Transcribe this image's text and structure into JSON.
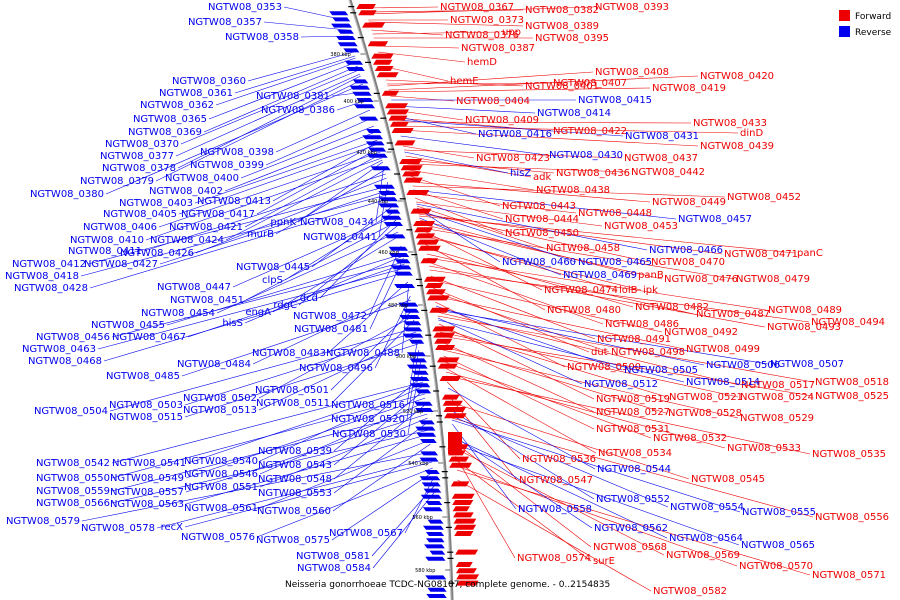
{
  "caption": "Neisseria gonorrhoeae TCDC-NG08107, complete genome. - 0..2154835",
  "legend": [
    {
      "label": "Forward",
      "color": "#ee0000"
    },
    {
      "label": "Reverse",
      "color": "#0000ee"
    }
  ],
  "colors": {
    "forward": "#ee0000",
    "reverse": "#0000ee",
    "backbone": "#808080"
  },
  "scale_ticks": [
    "380 kbp",
    "400 kbp",
    "420 kbp",
    "440 kbp",
    "460 kbp",
    "480 kbp",
    "500 kbp",
    "520 kbp",
    "540 kbp",
    "560 kbp",
    "580 kbp"
  ],
  "forward_labels": [
    "NGTW08_0367",
    "NGTW08_0382",
    "NGTW08_0393",
    "NGTW08_0373",
    "NGTW08_0389",
    "NGTW08_0376",
    "upp",
    "NGTW08_0395",
    "NGTW08_0387",
    "hemD",
    "hemE",
    "NGTW08_0401",
    "NGTW08_0407",
    "NGTW08_0408",
    "NGTW08_0420",
    "NGTW08_0419",
    "NGTW08_0404",
    "NGTW08_0409",
    "NGTW08_0422",
    "NGTW08_0433",
    "dinD",
    "NGTW08_0439",
    "NGTW08_0423",
    "NGTW08_0437",
    "adk",
    "NGTW08_0436",
    "NGTW08_0442",
    "NGTW08_0438",
    "NGTW08_0443",
    "NGTW08_0449",
    "NGTW08_0452",
    "NGTW08_0444",
    "NGTW08_0448",
    "NGTW08_0450",
    "NGTW08_0453",
    "NGTW08_0458",
    "NGTW08_0470",
    "NGTW08_0471",
    "panC",
    "panB",
    "NGTW08_0476",
    "NGTW08_0479",
    "NGTW08_0474",
    "lolB",
    "ipk",
    "NGTW08_0480",
    "NGTW08_0482",
    "NGTW08_0487",
    "NGTW08_0489",
    "NGTW08_0486",
    "NGTW08_0493",
    "NGTW08_0494",
    "NGTW08_0491",
    "NGTW08_0492",
    "dut",
    "NGTW08_0498",
    "NGTW08_0499",
    "NGTW08_0500",
    "NGTW08_0517",
    "NGTW08_0518",
    "NGTW08_0519",
    "NGTW08_0521",
    "NGTW08_0524",
    "NGTW08_0525",
    "NGTW08_0527",
    "NGTW08_0528",
    "NGTW08_0529",
    "NGTW08_0531",
    "NGTW08_0532",
    "NGTW08_0534",
    "NGTW08_0533",
    "NGTW08_0535",
    "NGTW08_0536",
    "NGTW08_0547",
    "NGTW08_0545",
    "NGTW08_0556",
    "NGTW08_0568",
    "NGTW08_0569",
    "NGTW08_0574",
    "surE",
    "NGTW08_0570",
    "NGTW08_0571",
    "NGTW08_0582"
  ],
  "reverse_labels_right": [
    "NGTW08_0415",
    "NGTW08_0414",
    "NGTW08_0416",
    "NGTW08_0431",
    "NGTW08_0430",
    "hisZ",
    "NGTW08_0457",
    "NGTW08_0466",
    "NGTW08_0460",
    "NGTW08_0465",
    "NGTW08_0469",
    "NGTW08_0505",
    "NGTW08_0506",
    "NGTW08_0507",
    "NGTW08_0512",
    "NGTW08_0514",
    "NGTW08_0544",
    "NGTW08_0552",
    "NGTW08_0554",
    "NGTW08_0555",
    "NGTW08_0558",
    "NGTW08_0562",
    "NGTW08_0564",
    "NGTW08_0565"
  ],
  "reverse_labels_left": [
    "NGTW08_0353",
    "NGTW08_0357",
    "NGTW08_0358",
    "NGTW08_0360",
    "NGTW08_0361",
    "NGTW08_0362",
    "NGTW08_0365",
    "NGTW08_0369",
    "NGTW08_0370",
    "NGTW08_0377",
    "NGTW08_0378",
    "NGTW08_0379",
    "NGTW08_0380",
    "NGTW08_0381",
    "NGTW08_0386",
    "NGTW08_0398",
    "NGTW08_0399",
    "NGTW08_0400",
    "NGTW08_0402",
    "NGTW08_0403",
    "NGTW08_0413",
    "NGTW08_0405",
    "NGTW08_0417",
    "NGTW08_0406",
    "NGTW08_0421",
    "NGTW08_0410",
    "NGTW08_0424",
    "ppnK",
    "NGTW08_0434",
    "murB",
    "NGTW08_0411",
    "NGTW08_0426",
    "NGTW08_0441",
    "NGTW08_0412",
    "NGTW08_0427",
    "NGTW08_0418",
    "NGTW08_0428",
    "NGTW08_0445",
    "clpS",
    "NGTW08_0447",
    "dcd",
    "NGTW08_0451",
    "rdgC",
    "NGTW08_0454",
    "engA",
    "NGTW08_0472",
    "NGTW08_0455",
    "hisS",
    "NGTW08_0481",
    "NGTW08_0456",
    "NGTW08_0467",
    "NGTW08_0463",
    "NGTW08_0468",
    "NGTW08_0483",
    "NGTW08_0488",
    "NGTW08_0484",
    "NGTW08_0496",
    "NGTW08_0485",
    "NGTW08_0501",
    "NGTW08_0502",
    "NGTW08_0511",
    "NGTW08_0504",
    "NGTW08_0503",
    "NGTW08_0513",
    "NGTW08_0516",
    "NGTW08_0515",
    "NGTW08_0520",
    "NGTW08_0530",
    "NGTW08_0539",
    "NGTW08_0542",
    "NGTW08_0541",
    "NGTW08_0540",
    "NGTW08_0543",
    "NGTW08_0550",
    "NGTW08_0549",
    "NGTW08_0546",
    "NGTW08_0548",
    "NGTW08_0559",
    "NGTW08_0557",
    "NGTW08_0551",
    "NGTW08_0553",
    "NGTW08_0566",
    "NGTW08_0563",
    "NGTW08_0561",
    "NGTW08_0560",
    "NGTW08_0579",
    "NGTW08_0578",
    "recX",
    "NGTW08_0576",
    "NGTW08_0575",
    "NGTW08_0567",
    "NGTW08_0581",
    "NGTW08_0584"
  ]
}
